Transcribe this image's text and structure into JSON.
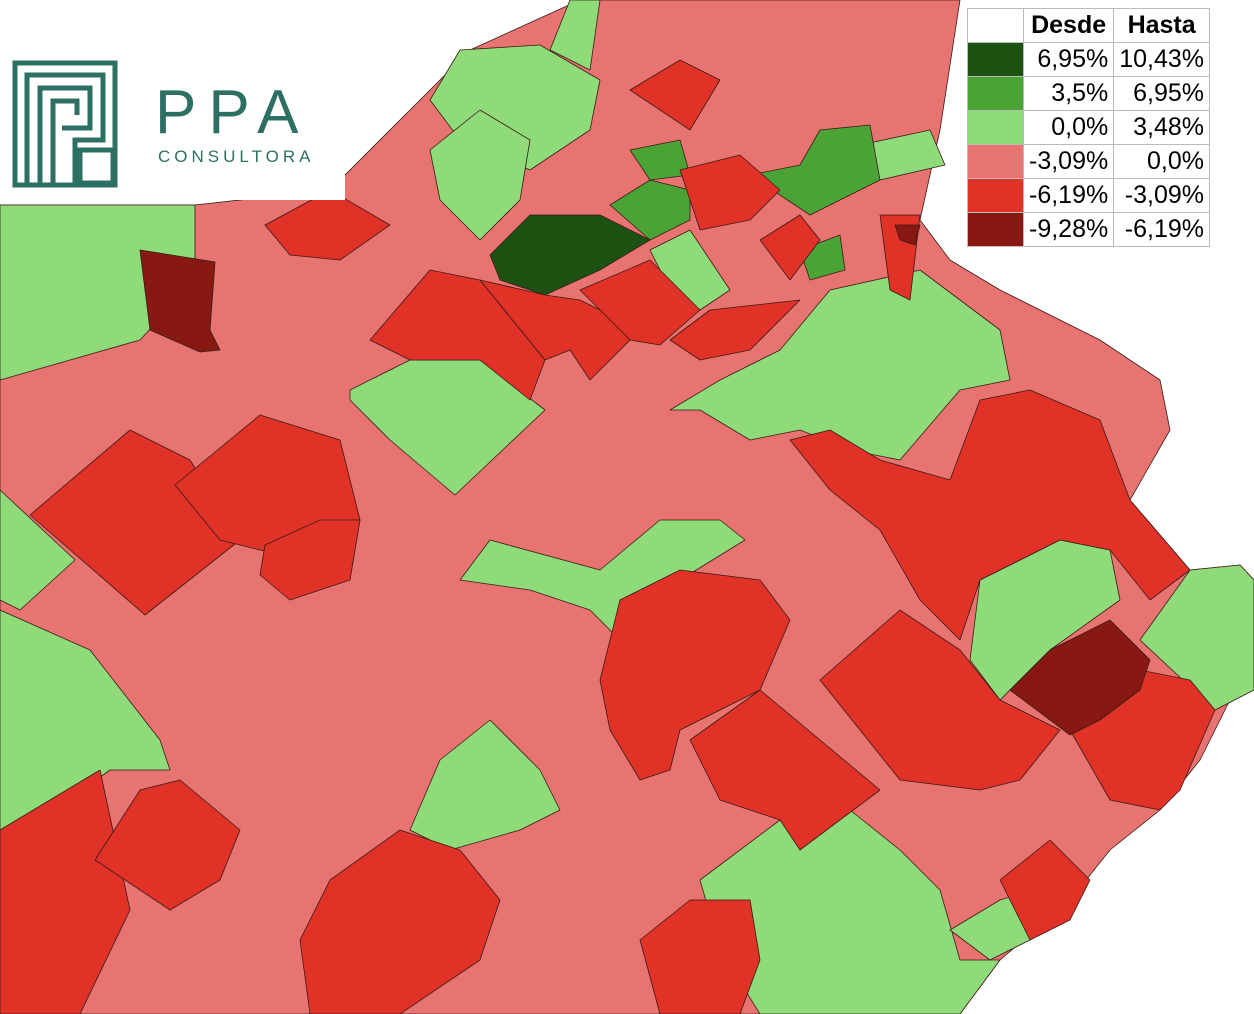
{
  "logo": {
    "name": "PPA",
    "subtitle": "CONSULTORA"
  },
  "legend": {
    "headers": [
      "Desde",
      "Hasta"
    ],
    "rows": [
      {
        "color": "#1e5213",
        "from": "6,95%",
        "to": "10,43%"
      },
      {
        "color": "#4ba335",
        "from": "3,5%",
        "to": "6,95%"
      },
      {
        "color": "#8fdb7a",
        "from": "0,0%",
        "to": "3,48%"
      },
      {
        "color": "#e87472",
        "from": "-3,09%",
        "to": "0,0%"
      },
      {
        "color": "#e03226",
        "from": "-6,19%",
        "to": "-3,09%"
      },
      {
        "color": "#871912",
        "from": "-9,28%",
        "to": "-6,19%"
      }
    ]
  }
}
